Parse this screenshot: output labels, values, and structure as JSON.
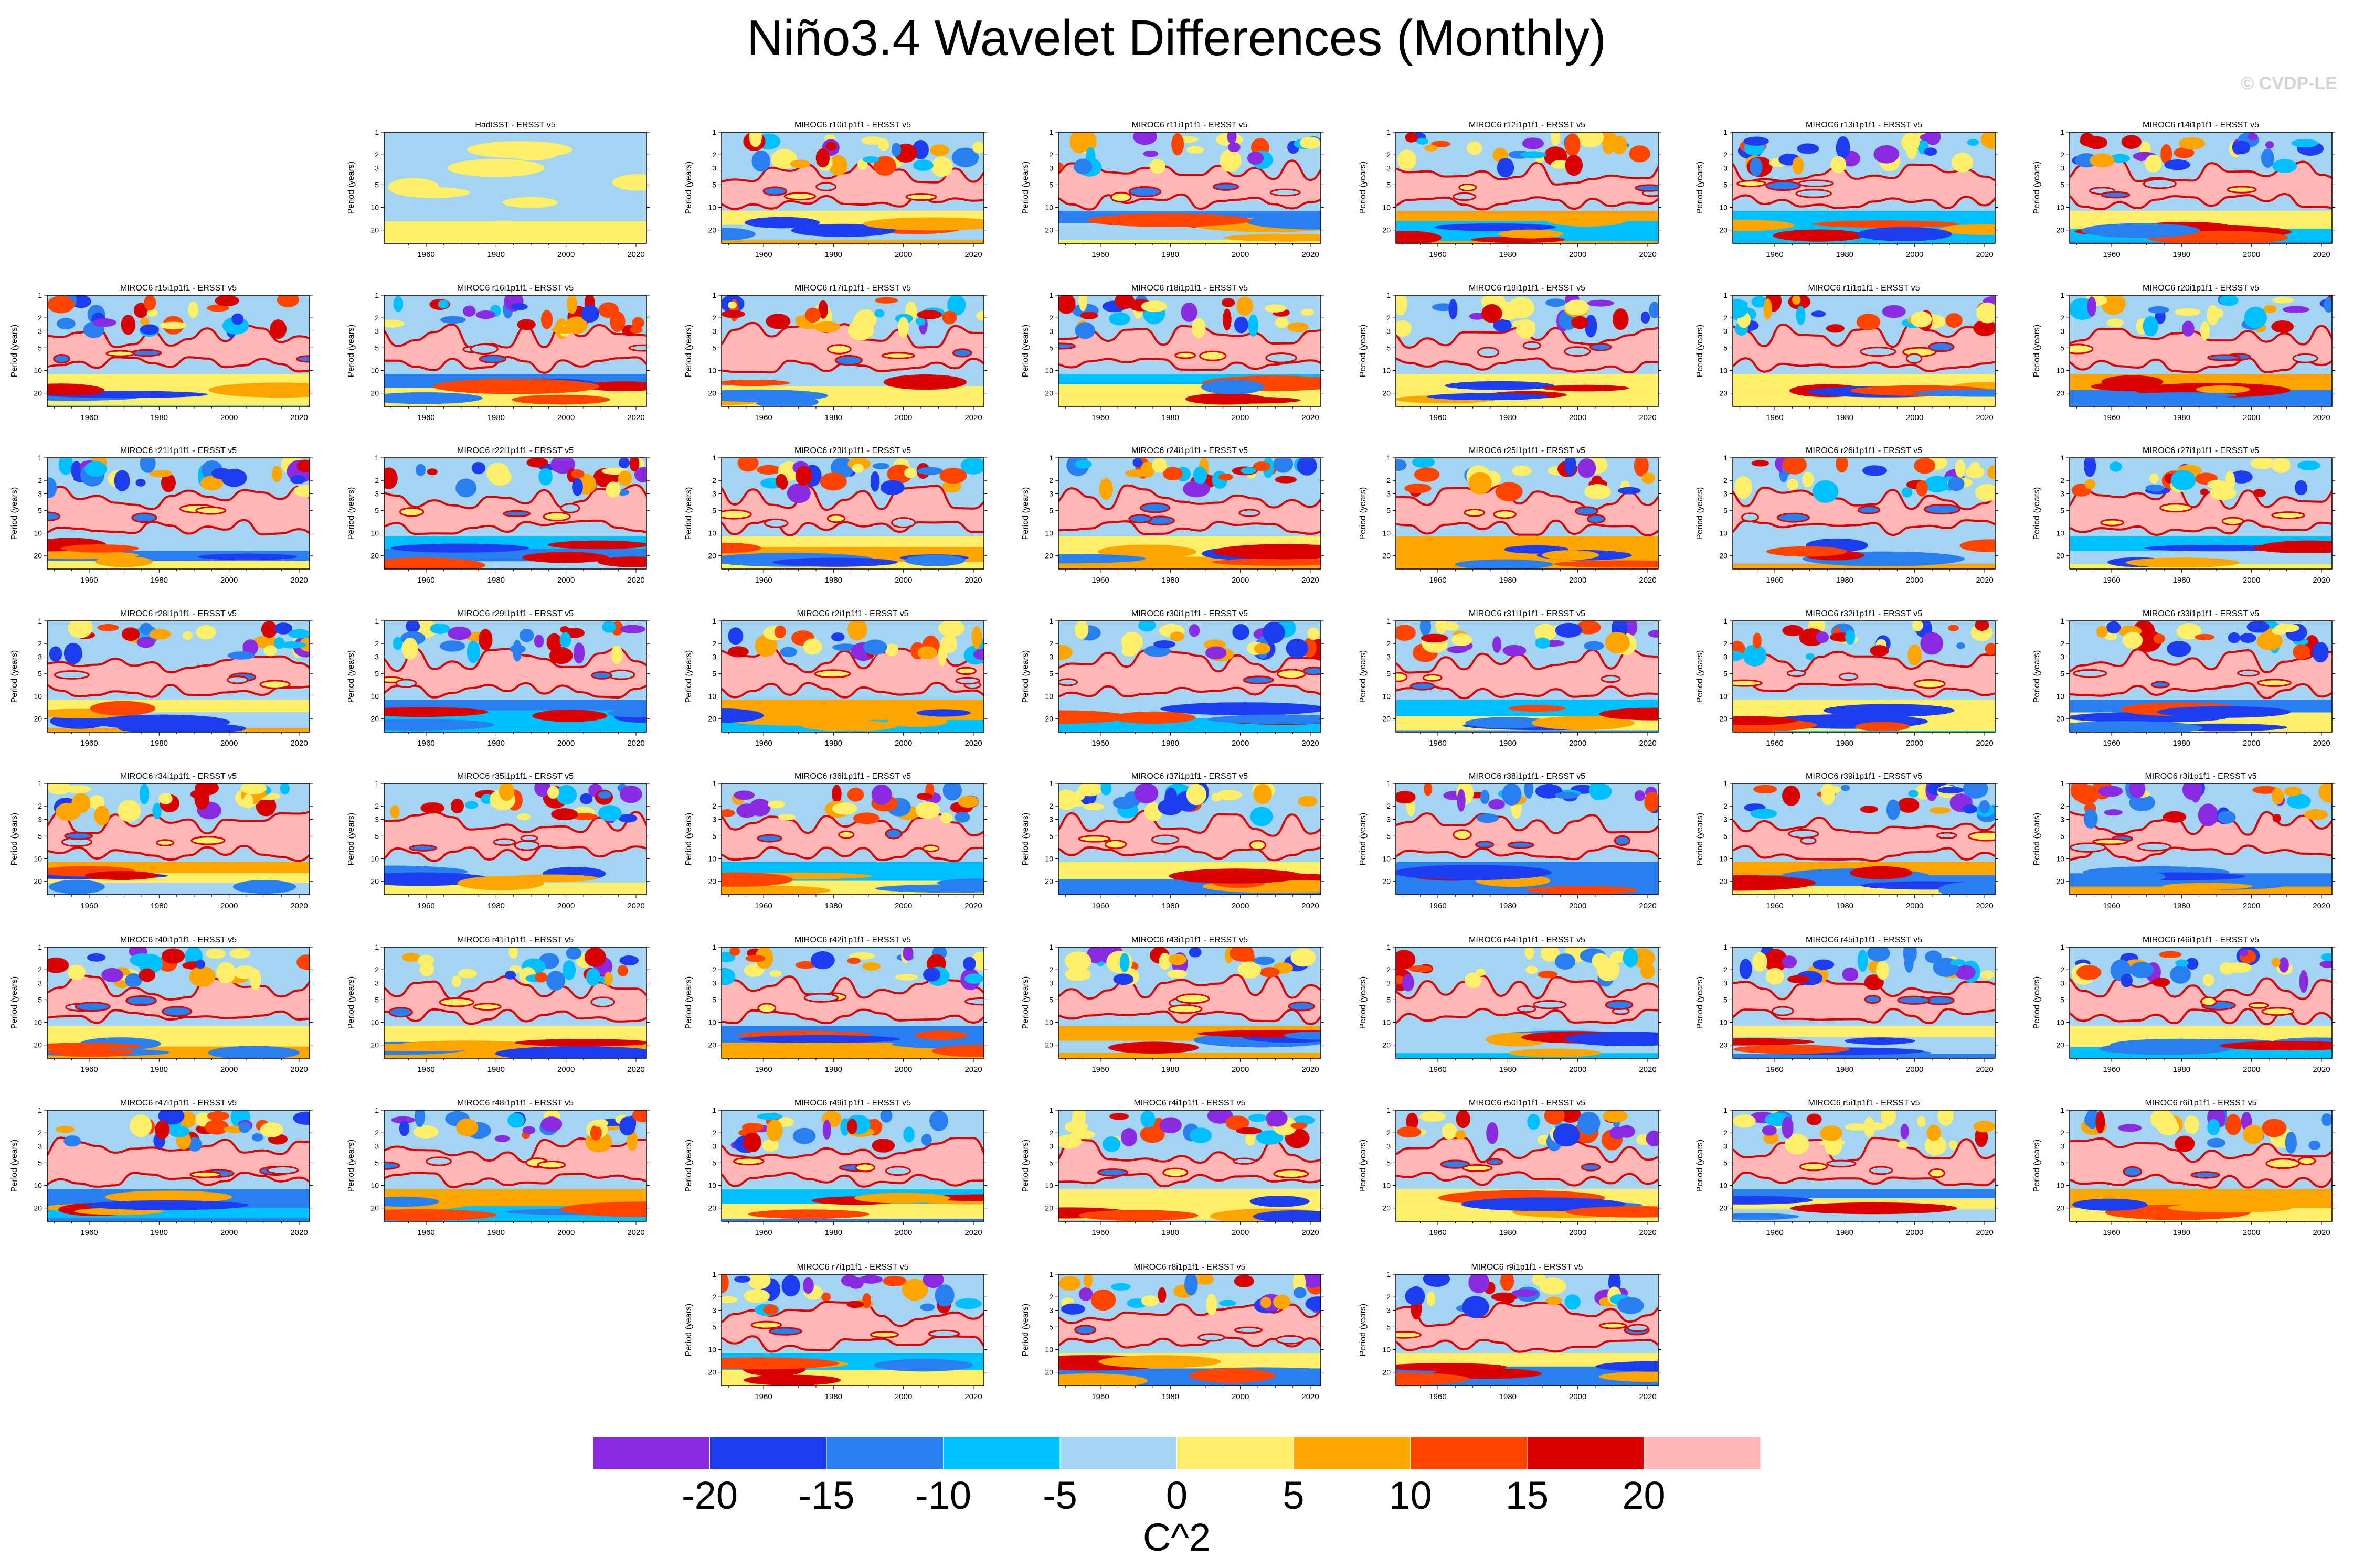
{
  "title": "Niño3.4 Wavelet Differences (Monthly)",
  "copyright": "© CVDP-LE",
  "chart_data": {
    "type": "heatmap",
    "title": "Niño3.4 Wavelet Differences (Monthly)",
    "ylabel": "Period (years)",
    "xlim": [
      1948,
      2023
    ],
    "ylim": [
      1,
      30
    ],
    "y_scale": "log",
    "x_ticks": [
      1960,
      1980,
      2000,
      2020
    ],
    "y_ticks": [
      1,
      2,
      3,
      5,
      10,
      20
    ],
    "panels": [
      "HadISST - ERSST v5",
      "MIROC6 r10i1p1f1 - ERSST v5",
      "MIROC6 r11i1p1f1 - ERSST v5",
      "MIROC6 r12i1p1f1 - ERSST v5",
      "MIROC6 r13i1p1f1 - ERSST v5",
      "MIROC6 r14i1p1f1 - ERSST v5",
      "MIROC6 r15i1p1f1 - ERSST v5",
      "MIROC6 r16i1p1f1 - ERSST v5",
      "MIROC6 r17i1p1f1 - ERSST v5",
      "MIROC6 r18i1p1f1 - ERSST v5",
      "MIROC6 r19i1p1f1 - ERSST v5",
      "MIROC6 r1i1p1f1 - ERSST v5",
      "MIROC6 r20i1p1f1 - ERSST v5",
      "MIROC6 r21i1p1f1 - ERSST v5",
      "MIROC6 r22i1p1f1 - ERSST v5",
      "MIROC6 r23i1p1f1 - ERSST v5",
      "MIROC6 r24i1p1f1 - ERSST v5",
      "MIROC6 r25i1p1f1 - ERSST v5",
      "MIROC6 r26i1p1f1 - ERSST v5",
      "MIROC6 r27i1p1f1 - ERSST v5",
      "MIROC6 r28i1p1f1 - ERSST v5",
      "MIROC6 r29i1p1f1 - ERSST v5",
      "MIROC6 r2i1p1f1 - ERSST v5",
      "MIROC6 r30i1p1f1 - ERSST v5",
      "MIROC6 r31i1p1f1 - ERSST v5",
      "MIROC6 r32i1p1f1 - ERSST v5",
      "MIROC6 r33i1p1f1 - ERSST v5",
      "MIROC6 r34i1p1f1 - ERSST v5",
      "MIROC6 r35i1p1f1 - ERSST v5",
      "MIROC6 r36i1p1f1 - ERSST v5",
      "MIROC6 r37i1p1f1 - ERSST v5",
      "MIROC6 r38i1p1f1 - ERSST v5",
      "MIROC6 r39i1p1f1 - ERSST v5",
      "MIROC6 r3i1p1f1 - ERSST v5",
      "MIROC6 r40i1p1f1 - ERSST v5",
      "MIROC6 r41i1p1f1 - ERSST v5",
      "MIROC6 r42i1p1f1 - ERSST v5",
      "MIROC6 r43i1p1f1 - ERSST v5",
      "MIROC6 r44i1p1f1 - ERSST v5",
      "MIROC6 r45i1p1f1 - ERSST v5",
      "MIROC6 r46i1p1f1 - ERSST v5",
      "MIROC6 r47i1p1f1 - ERSST v5",
      "MIROC6 r48i1p1f1 - ERSST v5",
      "MIROC6 r49i1p1f1 - ERSST v5",
      "MIROC6 r4i1p1f1 - ERSST v5",
      "MIROC6 r50i1p1f1 - ERSST v5",
      "MIROC6 r5i1p1f1 - ERSST v5",
      "MIROC6 r6i1p1f1 - ERSST v5",
      "MIROC6 r7i1p1f1 - ERSST v5",
      "MIROC6 r8i1p1f1 - ERSST v5",
      "MIROC6 r9i1p1f1 - ERSST v5"
    ],
    "colorbar": {
      "label": "C^2",
      "tick_labels": [
        "-20",
        "-15",
        "-10",
        "-5",
        "0",
        "5",
        "10",
        "15",
        "20"
      ],
      "colors": [
        "#8a2be2",
        "#1e3cf0",
        "#2a7ff0",
        "#00bfff",
        "#a3d5f2",
        "#fdef6a",
        "#ffa500",
        "#ff4500",
        "#d80000",
        "#ffb6b6"
      ]
    }
  }
}
